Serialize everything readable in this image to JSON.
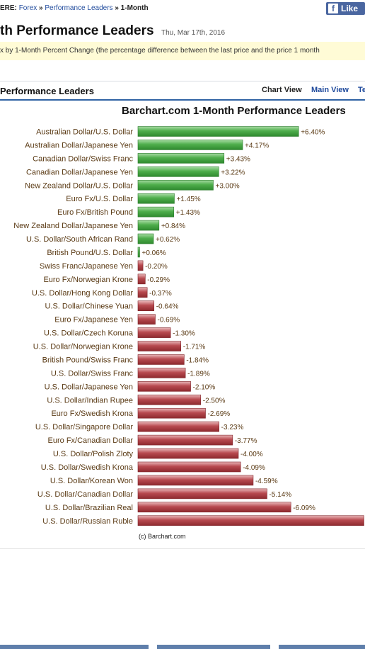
{
  "breadcrumb": {
    "prefix": "ERE:",
    "link1": "Forex",
    "sep1": "»",
    "link2": "Performance Leaders",
    "sep2": "»",
    "current": "1-Month"
  },
  "like_button": {
    "icon": "facebook-f-icon",
    "label": "Like"
  },
  "header": {
    "title": "th Performance Leaders",
    "date": "Thu, Mar 17th, 2016"
  },
  "description": "x by 1-Month Percent Change (the percentage difference between the last price and the price 1 month",
  "panel": {
    "title": "Performance Leaders",
    "chart_view": "Chart View",
    "main_view": "Main View",
    "more_tab": "Te"
  },
  "colors": {
    "positive": "#3f9e3f",
    "negative": "#a8343a",
    "link": "#1f4a9c",
    "label": "#5a3a14"
  },
  "chart_data": {
    "type": "bar",
    "orientation": "horizontal",
    "title": "Barchart.com 1-Month Performance Leaders",
    "credit": "(c) Barchart.com",
    "unit": "%",
    "categories": [
      "Australian Dollar/U.S. Dollar",
      "Australian Dollar/Japanese Yen",
      "Canadian Dollar/Swiss Franc",
      "Canadian Dollar/Japanese Yen",
      "New Zealand Dollar/U.S. Dollar",
      "Euro Fx/U.S. Dollar",
      "Euro Fx/British Pound",
      "New Zealand Dollar/Japanese Yen",
      "U.S. Dollar/South African Rand",
      "British Pound/U.S. Dollar",
      "Swiss Franc/Japanese Yen",
      "Euro Fx/Norwegian Krone",
      "U.S. Dollar/Hong Kong Dollar",
      "U.S. Dollar/Chinese Yuan",
      "Euro Fx/Japanese Yen",
      "U.S. Dollar/Czech Koruna",
      "U.S. Dollar/Norwegian Krone",
      "British Pound/Swiss Franc",
      "U.S. Dollar/Swiss Franc",
      "U.S. Dollar/Japanese Yen",
      "U.S. Dollar/Indian Rupee",
      "Euro Fx/Swedish Krona",
      "U.S. Dollar/Singapore Dollar",
      "Euro Fx/Canadian Dollar",
      "U.S. Dollar/Polish Zloty",
      "U.S. Dollar/Swedish Krona",
      "U.S. Dollar/Korean Won",
      "U.S. Dollar/Canadian Dollar",
      "U.S. Dollar/Brazilian Real",
      "U.S. Dollar/Russian Ruble"
    ],
    "values": [
      6.4,
      4.17,
      3.43,
      3.22,
      3.0,
      1.45,
      1.43,
      0.84,
      0.62,
      0.06,
      -0.2,
      -0.29,
      -0.37,
      -0.64,
      -0.69,
      -1.3,
      -1.71,
      -1.84,
      -1.89,
      -2.1,
      -2.5,
      -2.69,
      -3.23,
      -3.77,
      -4.0,
      -4.09,
      -4.59,
      -5.14,
      -6.09,
      -9.0
    ],
    "labels": [
      "+6.40%",
      "+4.17%",
      "+3.43%",
      "+3.22%",
      "+3.00%",
      "+1.45%",
      "+1.43%",
      "+0.84%",
      "+0.62%",
      "+0.06%",
      "-0.20%",
      "-0.29%",
      "-0.37%",
      "-0.64%",
      "-0.69%",
      "-1.30%",
      "-1.71%",
      "-1.84%",
      "-1.89%",
      "-2.10%",
      "-2.50%",
      "-2.69%",
      "-3.23%",
      "-3.77%",
      "-4.00%",
      "-4.09%",
      "-4.59%",
      "-5.14%",
      "-6.09%",
      ""
    ],
    "grid": false,
    "legend": "none"
  }
}
